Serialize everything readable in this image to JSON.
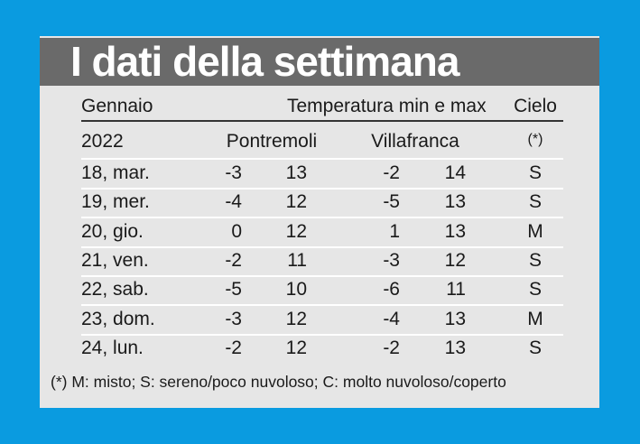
{
  "header": {
    "title": "I dati della settimana"
  },
  "table": {
    "headers": [
      "Gennaio",
      "Temperatura min e max",
      "Cielo"
    ],
    "subheaders": [
      "2022",
      "Pontremoli",
      "Villafranca",
      "(*)"
    ],
    "rows": [
      [
        "18, mar.",
        -3,
        13,
        -2,
        14,
        "S"
      ],
      [
        "19, mer.",
        -4,
        12,
        -5,
        13,
        "S"
      ],
      [
        "20, gio.",
        0,
        12,
        1,
        13,
        "M"
      ],
      [
        "21, ven.",
        -2,
        11,
        -3,
        12,
        "S"
      ],
      [
        "22, sab.",
        -5,
        10,
        -6,
        11,
        "S"
      ],
      [
        "23, dom.",
        -3,
        12,
        -4,
        13,
        "M"
      ],
      [
        "24, lun.",
        -2,
        12,
        -2,
        13,
        "S"
      ]
    ]
  },
  "footnote": "(*) M: misto; S: sereno/poco nuvoloso; C: molto nuvoloso/coperto"
}
